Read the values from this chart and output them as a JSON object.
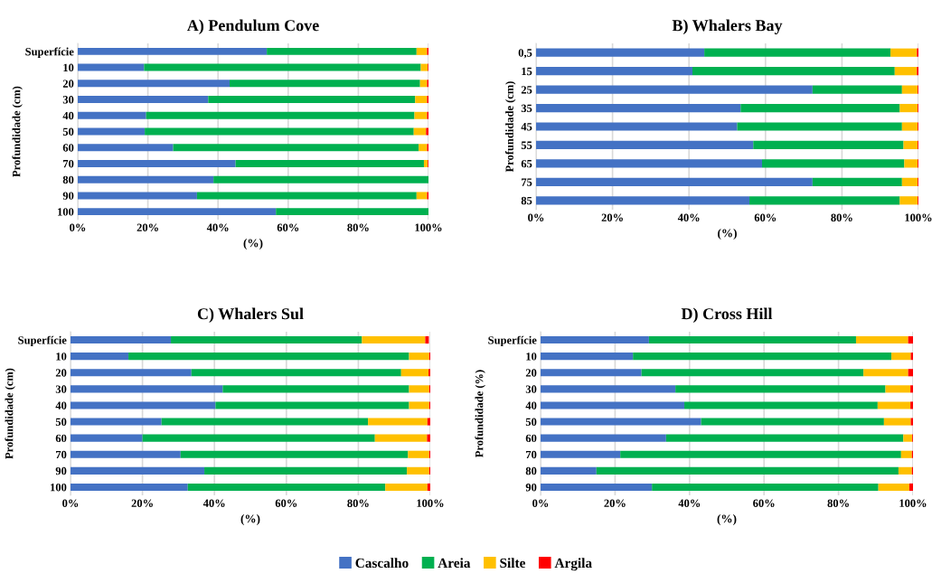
{
  "chart_data": [
    {
      "type": "bar",
      "orientation": "horizontal",
      "stacked": true,
      "title": "A) Pendulum Cove",
      "xlabel": "(%)",
      "ylabel": "Profundidade (cm)",
      "grid": "x",
      "legend": "bottom",
      "categories": [
        "Superfície",
        "10",
        "20",
        "30",
        "40",
        "50",
        "60",
        "70",
        "80",
        "90",
        "100"
      ],
      "xlim": [
        0,
        100
      ],
      "xticks": [
        {
          "value": 0,
          "label": "0%"
        },
        {
          "value": 20,
          "label": "20%"
        },
        {
          "value": 40,
          "label": "40%"
        },
        {
          "value": 60,
          "label": "60%"
        },
        {
          "value": 80,
          "label": "80%"
        },
        {
          "value": 100,
          "label": "100%"
        }
      ],
      "series": [
        {
          "name": "Cascalho",
          "color": "#4472c4",
          "values": [
            53.9,
            18.9,
            43.3,
            37.2,
            19.5,
            19.1,
            27.2,
            45.0,
            38.7,
            34.0,
            56.5
          ]
        },
        {
          "name": "Areia",
          "color": "#00b050",
          "values": [
            42.7,
            78.9,
            54.3,
            59.0,
            76.5,
            76.7,
            70.0,
            53.7,
            61.3,
            62.6,
            43.5
          ]
        },
        {
          "name": "Silte",
          "color": "#ffc000",
          "values": [
            3.0,
            2.0,
            2.0,
            3.4,
            3.6,
            3.5,
            2.4,
            1.1,
            0,
            3.0,
            0
          ]
        },
        {
          "name": "Argila",
          "color": "#ff0000",
          "values": [
            0.4,
            0.2,
            0.4,
            0.4,
            0.4,
            0.7,
            0.4,
            0.2,
            0,
            0.4,
            0
          ]
        }
      ]
    },
    {
      "type": "bar",
      "orientation": "horizontal",
      "stacked": true,
      "title": "B) Whalers Bay",
      "xlabel": "(%)",
      "ylabel": "Profundidade (cm)",
      "grid": "x",
      "categories": [
        "0,5",
        "15",
        "25",
        "35",
        "45",
        "55",
        "65",
        "75",
        "85"
      ],
      "xlim": [
        0,
        100
      ],
      "xticks": [
        {
          "value": 0,
          "label": "0%"
        },
        {
          "value": 20,
          "label": "20%"
        },
        {
          "value": 40,
          "label": "40%"
        },
        {
          "value": 60,
          "label": "60%"
        },
        {
          "value": 80,
          "label": "80%"
        },
        {
          "value": 100,
          "label": "100%"
        }
      ],
      "series": [
        {
          "color": "#4472c4",
          "values": [
            44.0,
            40.9,
            72.3,
            53.5,
            52.6,
            56.8,
            59.1,
            72.3,
            55.8
          ]
        },
        {
          "color": "#00b050",
          "values": [
            48.7,
            52.9,
            23.4,
            41.6,
            43.1,
            39.3,
            37.2,
            23.4,
            39.3
          ]
        },
        {
          "color": "#ffc000",
          "values": [
            6.9,
            5.8,
            4.1,
            4.7,
            4.1,
            3.7,
            3.5,
            4.1,
            4.7
          ]
        },
        {
          "color": "#ff0000",
          "values": [
            0.4,
            0.4,
            0.2,
            0.2,
            0.2,
            0.2,
            0.2,
            0.2,
            0.2
          ]
        }
      ]
    },
    {
      "type": "bar",
      "orientation": "horizontal",
      "stacked": true,
      "title": "C) Whalers Sul",
      "xlabel": "(%)",
      "ylabel": "Profundidade (cm)",
      "grid": "x",
      "categories": [
        "Superfície",
        "10",
        "20",
        "30",
        "40",
        "50",
        "60",
        "70",
        "90",
        "100"
      ],
      "xlim": [
        0,
        100
      ],
      "xticks": [
        {
          "value": 0,
          "label": "0%"
        },
        {
          "value": 20,
          "label": "20%"
        },
        {
          "value": 40,
          "label": "40%"
        },
        {
          "value": 60,
          "label": "60%"
        },
        {
          "value": 80,
          "label": "80%"
        },
        {
          "value": 100,
          "label": "100%"
        }
      ],
      "series": [
        {
          "color": "#4472c4",
          "values": [
            27.9,
            16.1,
            33.6,
            42.3,
            40.3,
            25.3,
            20.0,
            30.6,
            37.2,
            32.6
          ]
        },
        {
          "color": "#00b050",
          "values": [
            53.1,
            78.0,
            58.3,
            51.8,
            53.8,
            57.4,
            64.6,
            63.2,
            56.3,
            54.9
          ]
        },
        {
          "color": "#ffc000",
          "values": [
            17.6,
            5.6,
            7.6,
            5.6,
            5.6,
            16.5,
            14.5,
            5.9,
            6.2,
            11.7
          ]
        },
        {
          "color": "#ff0000",
          "values": [
            1.0,
            0.3,
            0.5,
            0.3,
            0.3,
            0.8,
            0.9,
            0.3,
            0.3,
            0.8
          ]
        }
      ]
    },
    {
      "type": "bar",
      "orientation": "horizontal",
      "stacked": true,
      "title": "D) Cross Hill",
      "xlabel": "(%)",
      "ylabel": "Profundidade (%)",
      "grid": "x",
      "categories": [
        "Superfície",
        "10",
        "20",
        "30",
        "40",
        "50",
        "60",
        "70",
        "80",
        "90"
      ],
      "xlim": [
        0,
        100
      ],
      "xticks": [
        {
          "value": 0,
          "label": "0%"
        },
        {
          "value": 20,
          "label": "20%"
        },
        {
          "value": 40,
          "label": "40%"
        },
        {
          "value": 60,
          "label": "60%"
        },
        {
          "value": 80,
          "label": "80%"
        },
        {
          "value": 100,
          "label": "100%"
        }
      ],
      "series": [
        {
          "color": "#4472c4",
          "values": [
            29.1,
            24.8,
            27.1,
            36.2,
            38.6,
            43.1,
            33.7,
            21.4,
            15.0,
            29.9
          ]
        },
        {
          "color": "#00b050",
          "values": [
            55.6,
            69.4,
            59.6,
            56.4,
            51.9,
            49.1,
            63.7,
            75.4,
            81.1,
            60.8
          ]
        },
        {
          "color": "#ffc000",
          "values": [
            14.0,
            5.2,
            12.0,
            6.7,
            8.8,
            7.2,
            2.4,
            2.9,
            3.6,
            8.3
          ]
        },
        {
          "color": "#ff0000",
          "values": [
            1.3,
            0.6,
            1.3,
            0.7,
            0.7,
            0.6,
            0.2,
            0.3,
            0.3,
            1.0
          ]
        }
      ]
    }
  ]
}
